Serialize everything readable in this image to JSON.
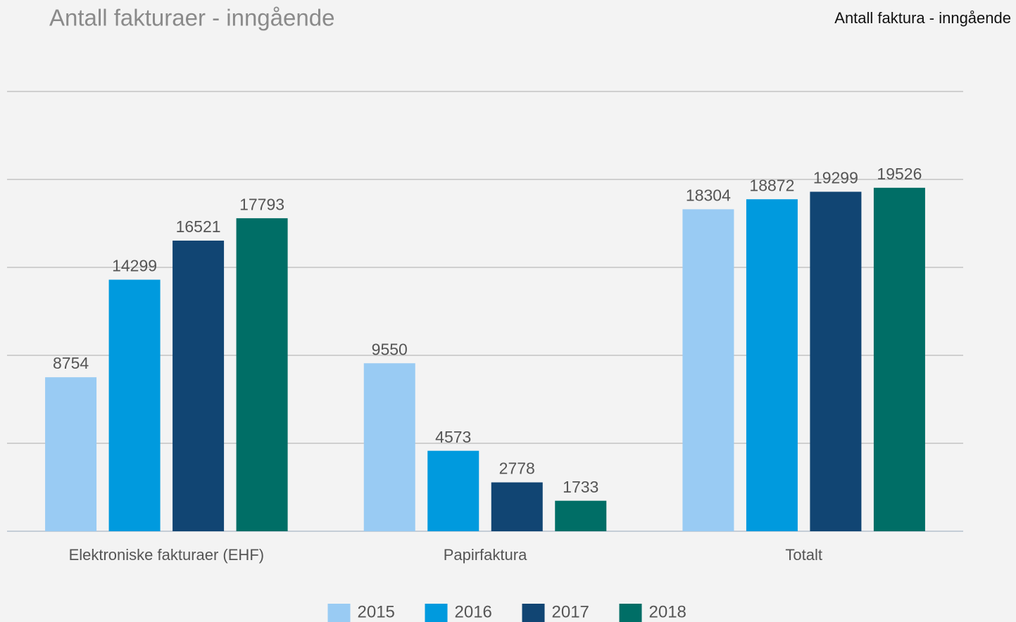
{
  "chart_data": {
    "type": "bar",
    "title": "Antall fakturaer - inngående",
    "subtitle": "Antall faktura - inngående",
    "categories": [
      "Elektroniske fakturaer (EHF)",
      "Papirfaktura",
      "Totalt"
    ],
    "series": [
      {
        "name": "2015",
        "color": "#99cbf3",
        "values": [
          8754,
          9550,
          18304
        ]
      },
      {
        "name": "2016",
        "color": "#009ade",
        "values": [
          14299,
          4573,
          18872
        ]
      },
      {
        "name": "2017",
        "color": "#114573",
        "values": [
          16521,
          2778,
          19299
        ]
      },
      {
        "name": "2018",
        "color": "#006e66",
        "values": [
          17793,
          1733,
          19526
        ]
      }
    ],
    "ylim": [
      0,
      25000
    ],
    "yticks": [
      0,
      5000,
      10000,
      15000,
      20000,
      25000
    ],
    "grid": true,
    "legend": "bottom"
  }
}
